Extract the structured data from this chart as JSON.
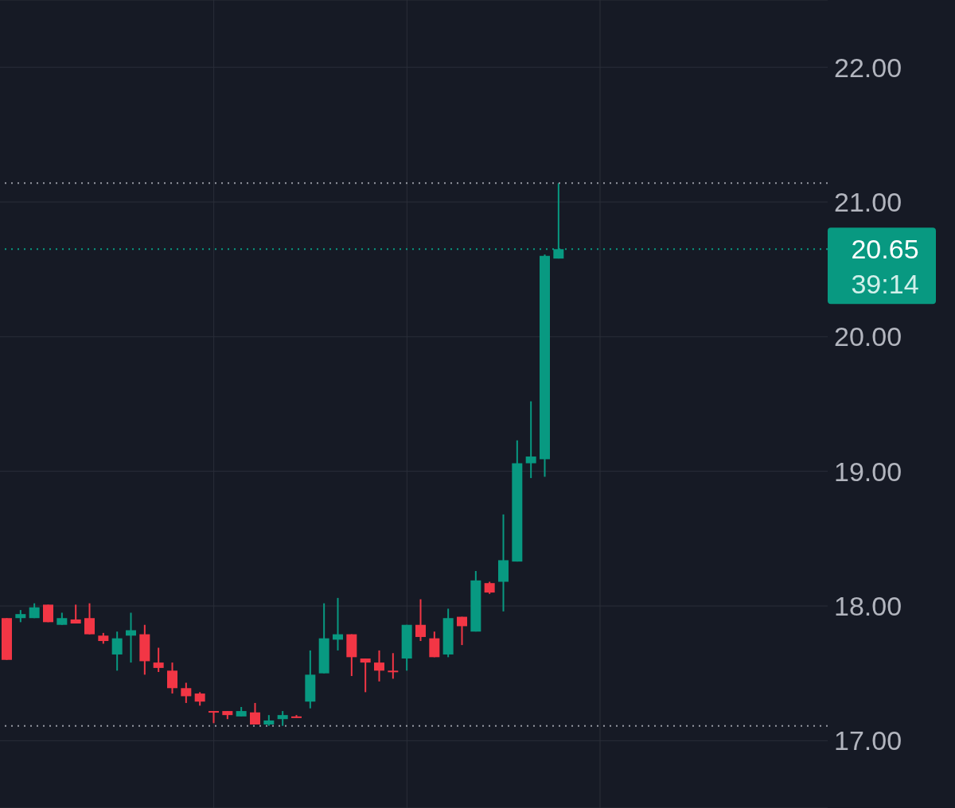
{
  "chart_data": {
    "type": "candlestick",
    "categories": [
      null,
      null,
      null,
      null,
      null,
      null,
      null,
      null,
      null,
      null,
      null,
      null,
      null,
      null,
      null,
      null,
      null,
      null,
      null,
      null,
      null,
      null,
      null,
      null,
      null,
      null,
      null,
      null,
      null,
      null,
      null,
      null,
      null,
      null,
      null,
      null,
      null,
      null,
      null,
      null,
      null,
      null,
      null,
      null,
      null,
      null,
      null,
      null,
      null,
      null,
      null,
      null,
      null,
      null,
      null,
      null,
      null,
      null,
      null,
      null
    ],
    "ohlc": [
      [
        17.91,
        17.91,
        17.6,
        17.6
      ],
      [
        17.91,
        17.97,
        17.88,
        17.94
      ],
      [
        17.91,
        18.02,
        17.91,
        17.99
      ],
      [
        18.01,
        18.01,
        17.88,
        17.88
      ],
      [
        17.86,
        17.95,
        17.86,
        17.91
      ],
      [
        17.9,
        18.01,
        17.87,
        17.87
      ],
      [
        17.91,
        18.02,
        17.79,
        17.79
      ],
      [
        17.78,
        17.8,
        17.72,
        17.74
      ],
      [
        17.64,
        17.81,
        17.52,
        17.76
      ],
      [
        17.78,
        17.95,
        17.58,
        17.82
      ],
      [
        17.79,
        17.86,
        17.49,
        17.59
      ],
      [
        17.58,
        17.69,
        17.51,
        17.54
      ],
      [
        17.52,
        17.58,
        17.35,
        17.39
      ],
      [
        17.39,
        17.43,
        17.28,
        17.33
      ],
      [
        17.35,
        17.36,
        17.26,
        17.29
      ],
      [
        17.22,
        17.22,
        17.13,
        17.21
      ],
      [
        17.22,
        17.22,
        17.16,
        17.19
      ],
      [
        17.18,
        17.25,
        17.18,
        17.22
      ],
      [
        17.21,
        17.28,
        17.12,
        17.12
      ],
      [
        17.12,
        17.19,
        17.11,
        17.15
      ],
      [
        17.16,
        17.22,
        17.11,
        17.19
      ],
      [
        17.18,
        17.19,
        17.17,
        17.17
      ],
      [
        17.29,
        17.67,
        17.24,
        17.49
      ],
      [
        17.5,
        18.02,
        17.5,
        17.76
      ],
      [
        17.75,
        18.06,
        17.67,
        17.79
      ],
      [
        17.79,
        17.79,
        17.48,
        17.62
      ],
      [
        17.61,
        17.61,
        17.36,
        17.58
      ],
      [
        17.58,
        17.67,
        17.44,
        17.52
      ],
      [
        17.52,
        17.65,
        17.46,
        17.51
      ],
      [
        17.61,
        17.86,
        17.52,
        17.86
      ],
      [
        17.86,
        18.05,
        17.74,
        17.77
      ],
      [
        17.76,
        17.81,
        17.62,
        17.62
      ],
      [
        17.64,
        17.98,
        17.62,
        17.91
      ],
      [
        17.92,
        17.92,
        17.71,
        17.85
      ],
      [
        17.81,
        18.26,
        17.81,
        18.19
      ],
      [
        18.17,
        18.18,
        18.09,
        18.1
      ],
      [
        18.18,
        18.68,
        17.96,
        18.34
      ],
      [
        18.33,
        19.23,
        18.33,
        19.06
      ],
      [
        19.06,
        19.52,
        18.95,
        19.11
      ],
      [
        19.09,
        20.61,
        18.96,
        20.6
      ],
      [
        20.58,
        21.14,
        20.58,
        20.65
      ],
      null,
      null,
      null,
      null,
      null,
      null,
      null,
      null,
      null,
      null,
      null,
      null,
      null,
      null,
      null,
      null,
      null,
      null,
      null
    ],
    "colors": [
      "#f23645",
      "#089981",
      "#089981",
      "#f23645",
      "#089981",
      "#f23645",
      "#f23645",
      "#f23645",
      "#089981",
      "#089981",
      "#f23645",
      "#f23645",
      "#f23645",
      "#f23645",
      "#f23645",
      "#f23645",
      "#f23645",
      "#089981",
      "#f23645",
      "#089981",
      "#089981",
      "#f23645",
      "#089981",
      "#089981",
      "#089981",
      "#f23645",
      "#f23645",
      "#f23645",
      "#f23645",
      "#089981",
      "#f23645",
      "#f23645",
      "#089981",
      "#f23645",
      "#089981",
      "#f23645",
      "#089981",
      "#089981",
      "#089981",
      "#089981",
      "#089981",
      null,
      null,
      null,
      null,
      null,
      null,
      null,
      null,
      null,
      null,
      null,
      null,
      null,
      null,
      null,
      null,
      null,
      null,
      null
    ],
    "ylim": [
      16.5,
      22.5
    ],
    "yticks": [
      {
        "value": 17,
        "label": "17.00"
      },
      {
        "value": 18,
        "label": "18.00"
      },
      {
        "value": 19,
        "label": "19.00"
      },
      {
        "value": 20,
        "label": "20.00"
      },
      {
        "value": 21,
        "label": "21.00"
      },
      {
        "value": 22,
        "label": "22.00"
      }
    ],
    "tick_labels": "y",
    "grid": true,
    "ref_lines": [
      {
        "axis": "y",
        "value": 21.14,
        "label": null,
        "color": "#9598a1",
        "line_style": "dotted"
      },
      {
        "axis": "y",
        "value": 20.65,
        "label": "20.65",
        "color": "#089981",
        "line_style": "dotted"
      },
      {
        "axis": "y",
        "value": 17.11,
        "label": null,
        "color": "#9598a1",
        "line_style": "dotted"
      }
    ],
    "annotations": [
      "39:14"
    ]
  }
}
